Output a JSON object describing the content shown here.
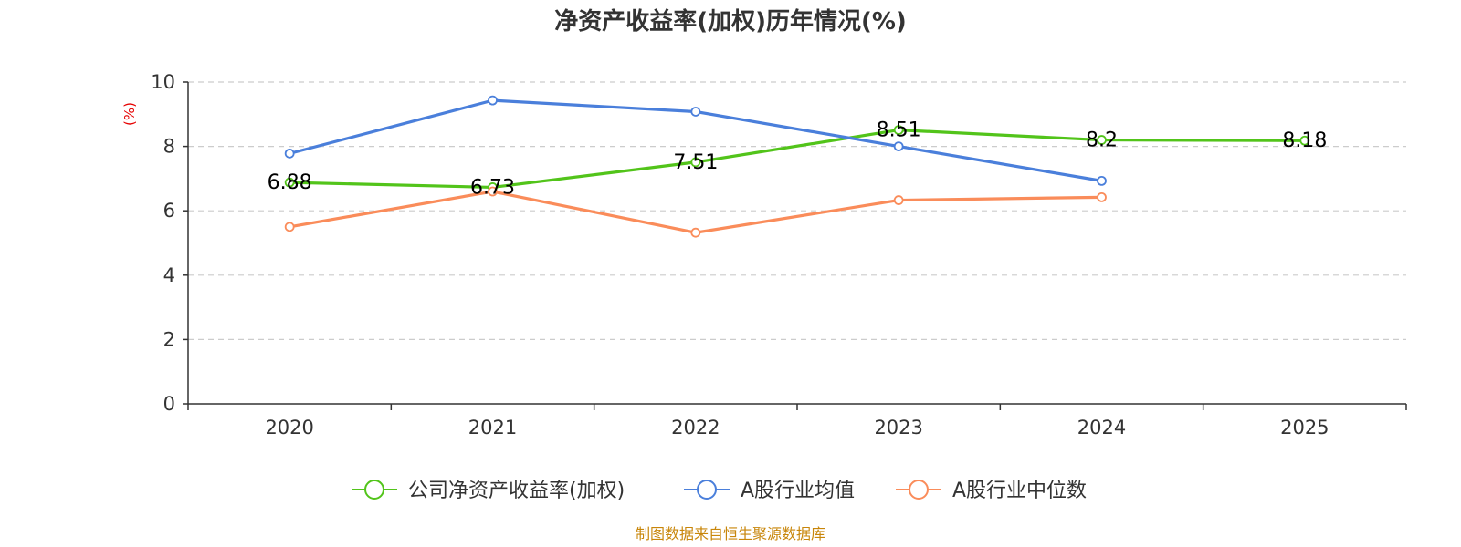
{
  "chart_data": {
    "type": "line",
    "title": "净资产收益率(加权)历年情况(%)",
    "ylabel": "(%)",
    "xlabel": "",
    "categories": [
      "2020",
      "2021",
      "2022",
      "2023",
      "2024",
      "2025"
    ],
    "ylim": [
      0,
      10
    ],
    "yticks": [
      0,
      2,
      4,
      6,
      8,
      10
    ],
    "grid": true,
    "legend_position": "bottom",
    "series": [
      {
        "name": "公司净资产收益率(加权)",
        "color": "#52c41a",
        "values": [
          6.88,
          6.73,
          7.51,
          8.51,
          8.2,
          8.18
        ],
        "labels": [
          "6.88",
          "6.73",
          "7.51",
          "8.51",
          "8.2",
          "8.18"
        ]
      },
      {
        "name": "A股行业均值",
        "color": "#4a7fdb",
        "values": [
          7.78,
          9.43,
          9.08,
          8.0,
          6.93,
          null
        ]
      },
      {
        "name": "A股行业中位数",
        "color": "#fa8c5a",
        "values": [
          5.5,
          6.6,
          5.32,
          6.33,
          6.42,
          null
        ]
      }
    ],
    "source": "制图数据来自恒生聚源数据库"
  }
}
